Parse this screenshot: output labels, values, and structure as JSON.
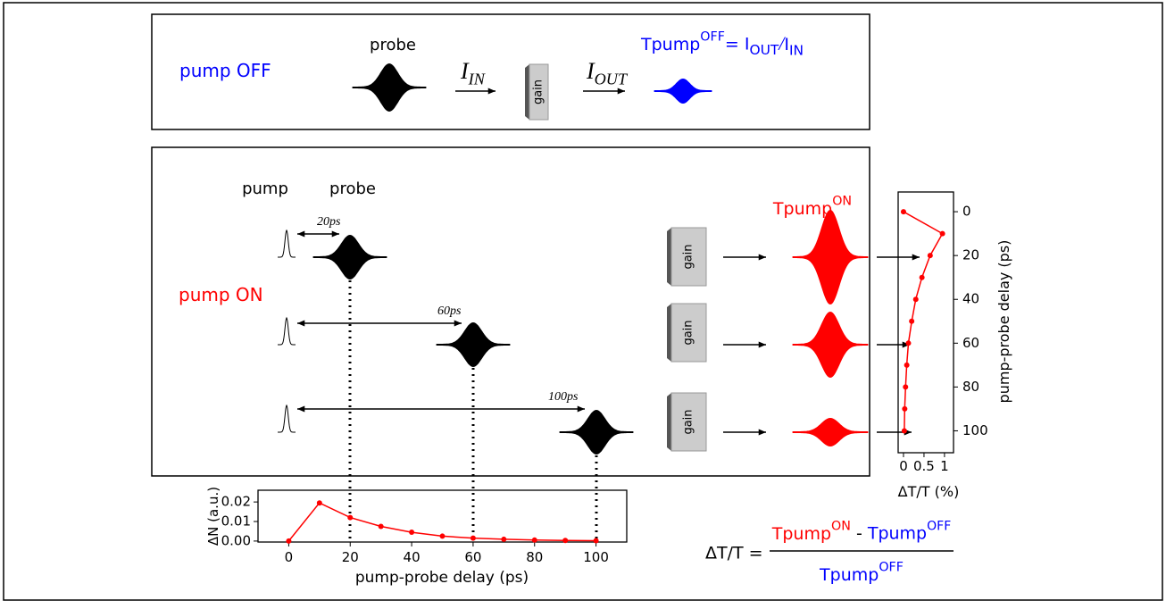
{
  "pump_off_panel": {
    "label": "pump OFF",
    "probe_label": "probe",
    "input": {
      "base": "I",
      "sub": "IN"
    },
    "gain": "gain",
    "output": {
      "base": "I",
      "sub": "OUT"
    },
    "equation": {
      "lhs_base": "Tpump",
      "lhs_sup": "OFF",
      "equals": "= ",
      "num_base": "I",
      "num_sub": "OUT",
      "slash": "/",
      "den_base": "I",
      "den_sub": "IN"
    }
  },
  "pump_on_panel": {
    "label": "pump ON",
    "pump_label": "pump",
    "probe_label": "probe",
    "delays": [
      "20ps",
      "60ps",
      "100ps"
    ],
    "gains": [
      "gain",
      "gain",
      "gain"
    ],
    "output": {
      "base": "Tpump",
      "sup": "ON"
    }
  },
  "delta_t_chart": {
    "type": "line",
    "color": "#ff0000",
    "x_label": "ΔT/T (%)",
    "y_label": "pump-probe delay (ps)",
    "delays": [
      0,
      10,
      20,
      30,
      40,
      50,
      60,
      70,
      80,
      90,
      100
    ],
    "values": [
      0.0,
      0.95,
      0.65,
      0.45,
      0.3,
      0.2,
      0.12,
      0.08,
      0.05,
      0.03,
      0.02
    ],
    "xlim": [
      -0.13,
      1.22
    ],
    "xticks": [
      0,
      0.5,
      1
    ],
    "ylim": [
      -9,
      110
    ],
    "yticks": [
      0,
      20,
      40,
      60,
      80,
      100
    ]
  },
  "delta_n_chart": {
    "type": "line",
    "color": "#ff0000",
    "x_label": "pump-probe delay (ps)",
    "y_label": "ΔN (a.u.)",
    "x": [
      0,
      10,
      20,
      30,
      40,
      50,
      60,
      70,
      80,
      90,
      100
    ],
    "values": [
      0,
      0.0195,
      0.012,
      0.0075,
      0.0045,
      0.0025,
      0.0015,
      0.0009,
      0.0005,
      0.0003,
      0.0002
    ],
    "xlim": [
      -10,
      110
    ],
    "xticks": [
      0,
      20,
      40,
      60,
      80,
      100
    ],
    "ylim": [
      -0.0005,
      0.026
    ],
    "yticks": [
      {
        "value": 0,
        "label": "0.00"
      },
      {
        "value": 0.01,
        "label": "0.01"
      },
      {
        "value": 0.02,
        "label": "0.02"
      }
    ]
  },
  "formula": {
    "lhs": "ΔT/T =",
    "num_on": {
      "base": "Tpump",
      "sup": "ON"
    },
    "minus": " - ",
    "num_off": {
      "base": "Tpump",
      "sup": "OFF"
    },
    "den": {
      "base": "Tpump",
      "sup": "OFF"
    }
  }
}
